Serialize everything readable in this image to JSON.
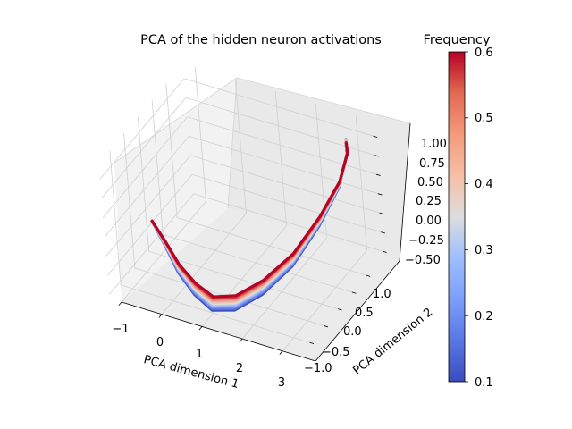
{
  "chart_data": {
    "type": "surface3d",
    "title": "PCA of the hidden neuron activations",
    "xlabel": "PCA dimension 1",
    "ylabel": "PCA dimension 2",
    "zlabel": "",
    "xlim": [
      -1.3,
      3.4
    ],
    "ylim": [
      -1.4,
      1.6
    ],
    "zlim": [
      -0.55,
      1.2
    ],
    "xticks": [
      "−1",
      "0",
      "1",
      "2",
      "3"
    ],
    "yticks": [
      "−1.0",
      "−0.5",
      "0.0",
      "0.5",
      "1.0"
    ],
    "zticks": [
      "−0.50",
      "−0.25",
      "0.00",
      "0.25",
      "0.50",
      "0.75",
      "1.00"
    ],
    "grid": true,
    "colorbar": {
      "label": "Frequency",
      "colormap": "coolwarm",
      "min": 0.1,
      "max": 0.6,
      "ticks": [
        "0.1",
        "0.2",
        "0.3",
        "0.4",
        "0.5",
        "0.6"
      ],
      "low_color": "#3b4cc0",
      "mid_color": "#dddddd",
      "high_color": "#b40426"
    },
    "frequency_values": [
      0.1,
      0.15,
      0.2,
      0.25,
      0.3,
      0.35,
      0.4,
      0.45,
      0.5,
      0.55,
      0.6
    ],
    "trajectory_points": [
      {
        "x": -1.0,
        "y": -0.2,
        "z": -0.02
      },
      {
        "x": -0.6,
        "y": -0.3,
        "z": -0.2
      },
      {
        "x": -0.2,
        "y": -0.45,
        "z": -0.35
      },
      {
        "x": 0.3,
        "y": -0.6,
        "z": -0.45
      },
      {
        "x": 0.8,
        "y": -0.7,
        "z": -0.5
      },
      {
        "x": 1.3,
        "y": -0.6,
        "z": -0.45
      },
      {
        "x": 1.8,
        "y": -0.3,
        "z": -0.3
      },
      {
        "x": 2.3,
        "y": 0.1,
        "z": -0.05
      },
      {
        "x": 2.7,
        "y": 0.55,
        "z": 0.3
      },
      {
        "x": 3.0,
        "y": 0.9,
        "z": 0.65
      },
      {
        "x": 3.1,
        "y": 1.1,
        "z": 0.95
      },
      {
        "x": 3.05,
        "y": 1.15,
        "z": 1.05
      }
    ]
  }
}
